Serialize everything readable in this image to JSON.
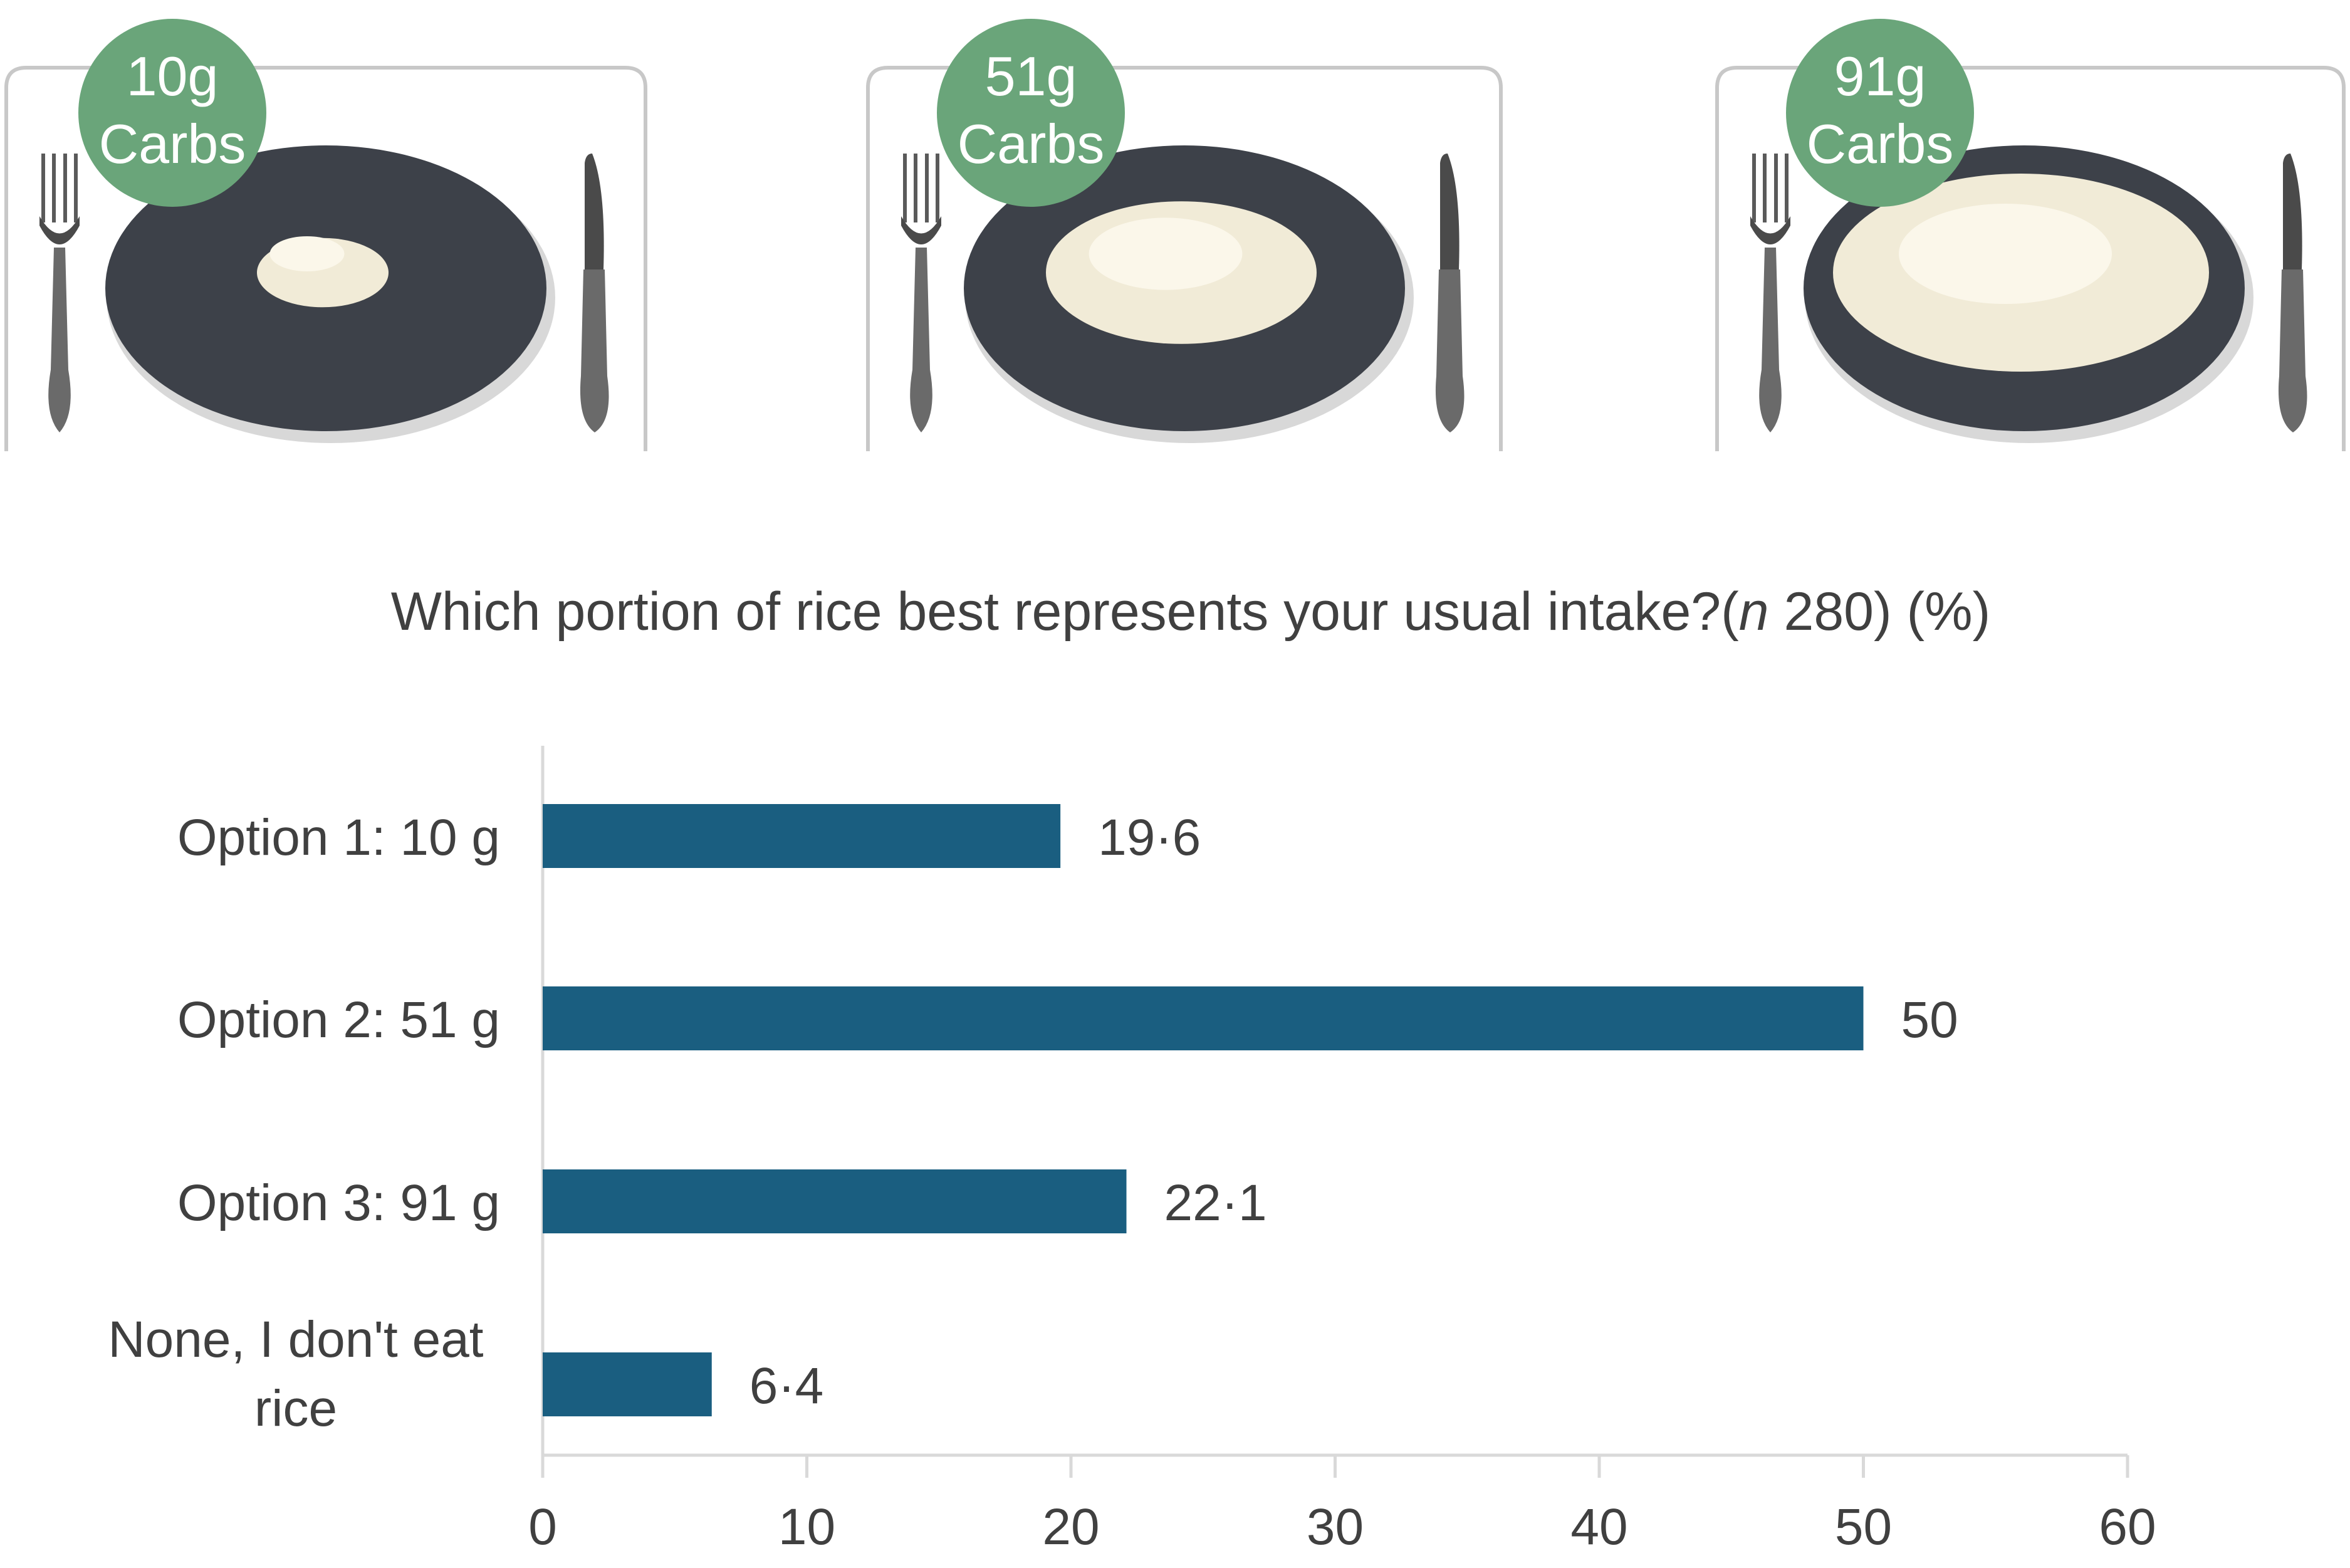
{
  "plates": [
    {
      "badge_line1": "10g",
      "badge_line2": "Carbs",
      "rice_size": 0.35
    },
    {
      "badge_line1": "51g",
      "badge_line2": "Carbs",
      "rice_size": 0.72
    },
    {
      "badge_line1": "91g",
      "badge_line2": "Carbs",
      "rice_size": 1.0
    }
  ],
  "colors": {
    "bar": "#1a5e80",
    "badge": "#6aa57a",
    "plate": "#3d4149",
    "rice": "#f1ebd7",
    "axis": "#d9d9d9",
    "text": "#404040"
  },
  "chart_data": {
    "type": "bar",
    "orientation": "horizontal",
    "title_main": "Which portion of rice best represents your usual intake?(",
    "title_italic": "n",
    "title_rest": " 280) (%)",
    "categories": [
      [
        "Option 1: 10 g"
      ],
      [
        "Option 2: 51 g"
      ],
      [
        "Option 3: 91 g"
      ],
      [
        "None, I don't eat",
        "rice"
      ]
    ],
    "values": [
      19.6,
      50,
      22.1,
      6.4
    ],
    "value_labels": [
      "19·6",
      "50",
      "22·1",
      "6·4"
    ],
    "xlim": [
      0,
      60
    ],
    "xticks": [
      0,
      10,
      20,
      30,
      40,
      50,
      60
    ],
    "xlabel": "",
    "ylabel": "",
    "grid": false,
    "legend": "none"
  }
}
